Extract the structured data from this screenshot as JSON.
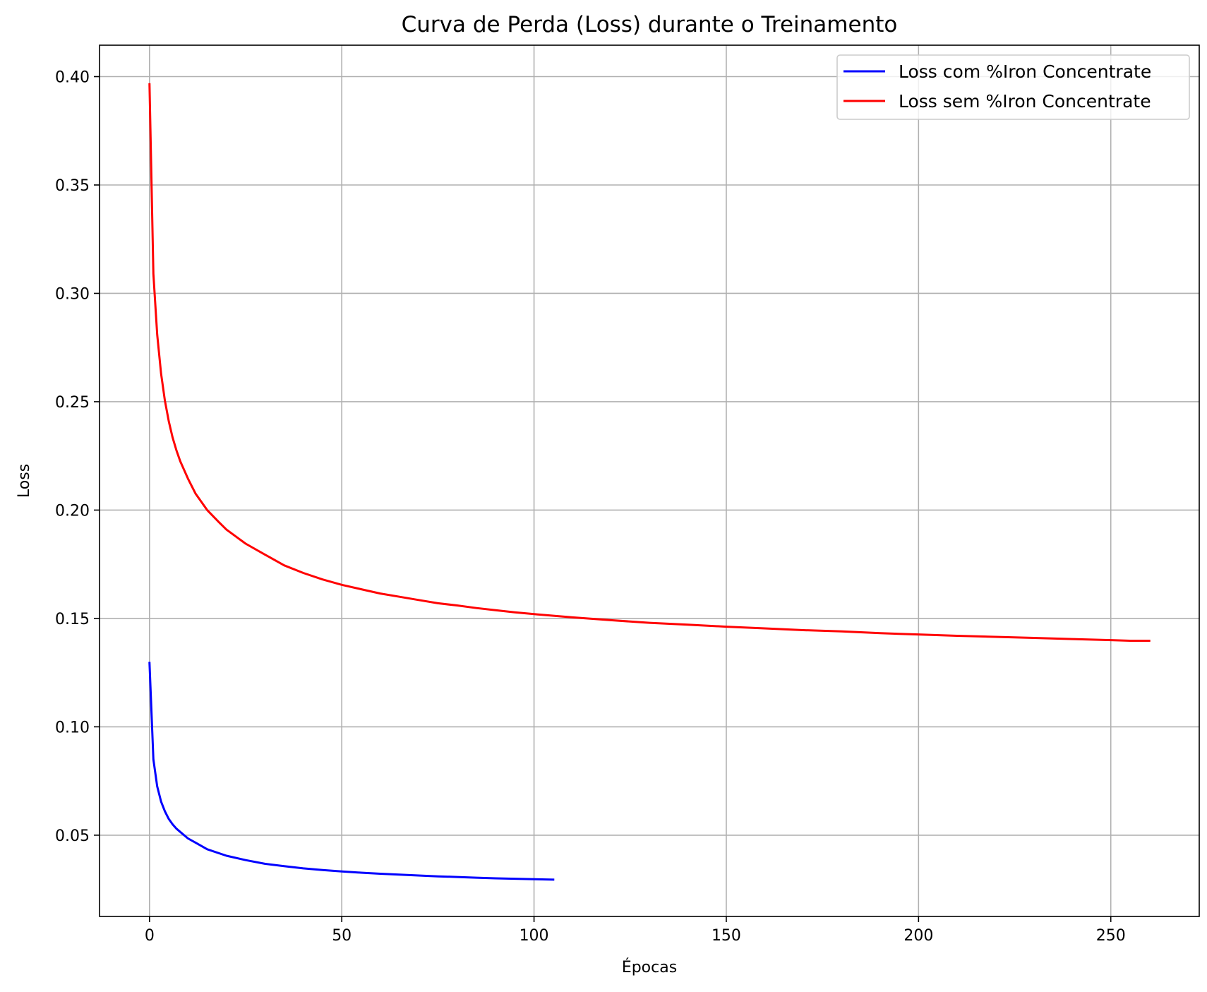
{
  "chart_data": {
    "type": "line",
    "title": "Curva de Perda (Loss) durante o Treinamento",
    "xlabel": "Épocas",
    "ylabel": "Loss",
    "xlim": [
      -13,
      273
    ],
    "ylim": [
      0.0125,
      0.4145
    ],
    "xticks": [
      0,
      50,
      100,
      150,
      200,
      250
    ],
    "xtick_labels": [
      "0",
      "50",
      "100",
      "150",
      "200",
      "250"
    ],
    "yticks": [
      0.05,
      0.1,
      0.15,
      0.2,
      0.25,
      0.3,
      0.35,
      0.4
    ],
    "ytick_labels": [
      "0.05",
      "0.10",
      "0.15",
      "0.20",
      "0.25",
      "0.30",
      "0.35",
      "0.40"
    ],
    "grid": true,
    "legend_position": "top-right",
    "series": [
      {
        "name": "Loss com %Iron Concentrate",
        "color": "#0000ff",
        "x": [
          0,
          1,
          2,
          3,
          4,
          5,
          6,
          7,
          8,
          10,
          12,
          15,
          20,
          25,
          30,
          35,
          40,
          45,
          50,
          55,
          60,
          65,
          70,
          75,
          80,
          85,
          90,
          95,
          100,
          105
        ],
        "y": [
          0.1295,
          0.085,
          0.0725,
          0.0655,
          0.061,
          0.0575,
          0.055,
          0.053,
          0.0515,
          0.0485,
          0.0465,
          0.0435,
          0.0405,
          0.0385,
          0.0368,
          0.0357,
          0.0347,
          0.0339,
          0.0333,
          0.0327,
          0.0322,
          0.0318,
          0.0314,
          0.031,
          0.0307,
          0.0304,
          0.0301,
          0.0299,
          0.0297,
          0.0295
        ]
      },
      {
        "name": "Loss sem %Iron Concentrate",
        "color": "#ff0000",
        "x": [
          0,
          1,
          2,
          3,
          4,
          5,
          6,
          7,
          8,
          10,
          12,
          15,
          18,
          20,
          25,
          30,
          35,
          40,
          45,
          50,
          55,
          60,
          65,
          70,
          75,
          80,
          85,
          90,
          95,
          100,
          110,
          120,
          130,
          140,
          150,
          160,
          170,
          180,
          190,
          200,
          210,
          220,
          230,
          240,
          250,
          255,
          260
        ],
        "y": [
          0.3965,
          0.309,
          0.281,
          0.263,
          0.2505,
          0.241,
          0.2335,
          0.2275,
          0.2225,
          0.2145,
          0.2075,
          0.2,
          0.1945,
          0.191,
          0.1845,
          0.1795,
          0.1745,
          0.171,
          0.168,
          0.1655,
          0.1635,
          0.1615,
          0.16,
          0.1585,
          0.157,
          0.156,
          0.1548,
          0.1538,
          0.1528,
          0.152,
          0.1505,
          0.1492,
          0.148,
          0.1471,
          0.1462,
          0.1454,
          0.1446,
          0.144,
          0.1432,
          0.1426,
          0.142,
          0.1415,
          0.141,
          0.1405,
          0.14,
          0.1397,
          0.1397
        ]
      }
    ]
  }
}
